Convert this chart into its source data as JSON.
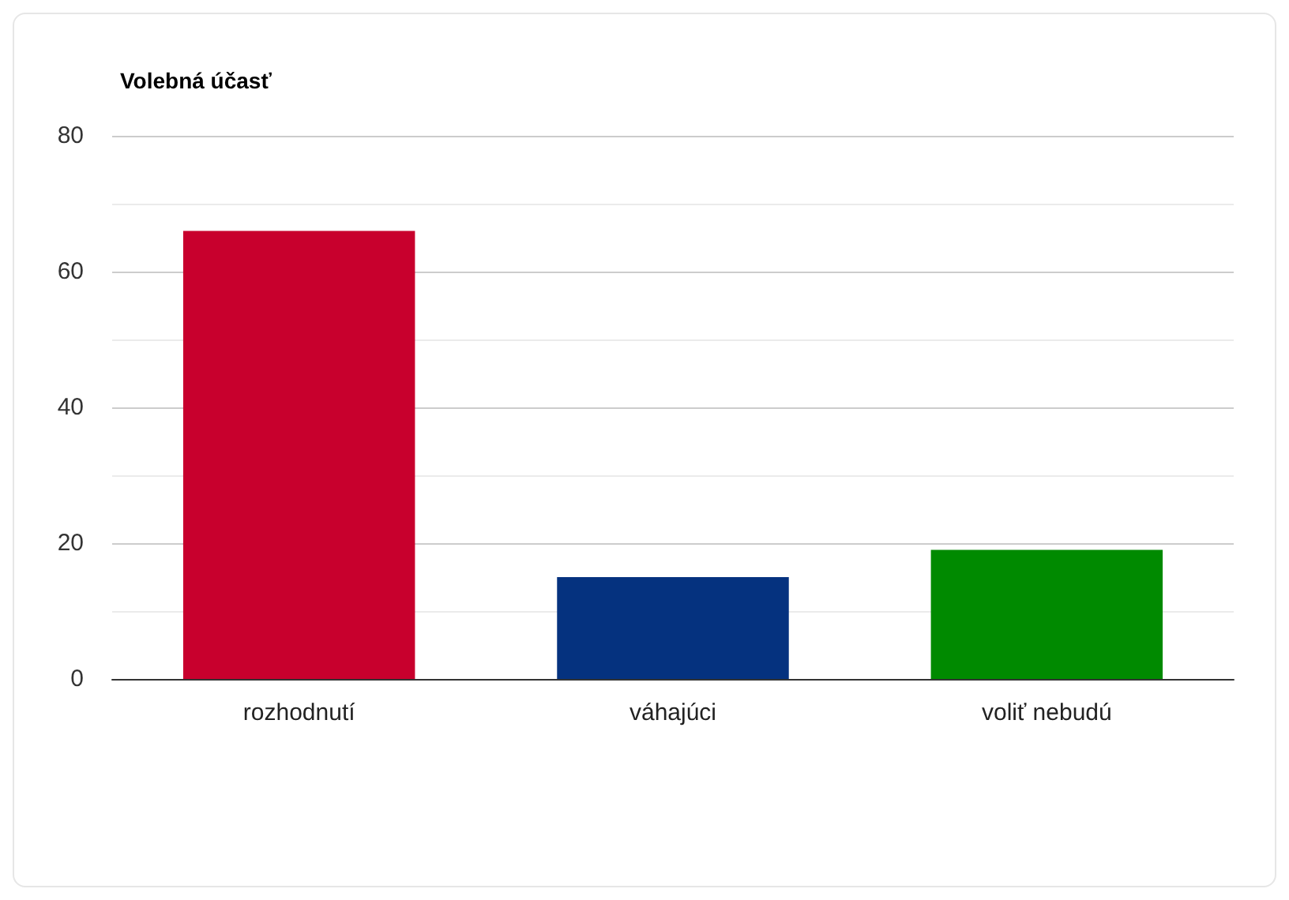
{
  "chart_data": {
    "type": "bar",
    "title": "Volebná účasť",
    "categories": [
      "rozhodnutí",
      "váhajúci",
      "voliť nebudú"
    ],
    "values": [
      66,
      15,
      19
    ],
    "colors": [
      "#c8002d",
      "#05327f",
      "#008a00"
    ],
    "ylim": [
      0,
      80
    ],
    "yticks": [
      0,
      20,
      40,
      60,
      80
    ],
    "grid": true
  }
}
